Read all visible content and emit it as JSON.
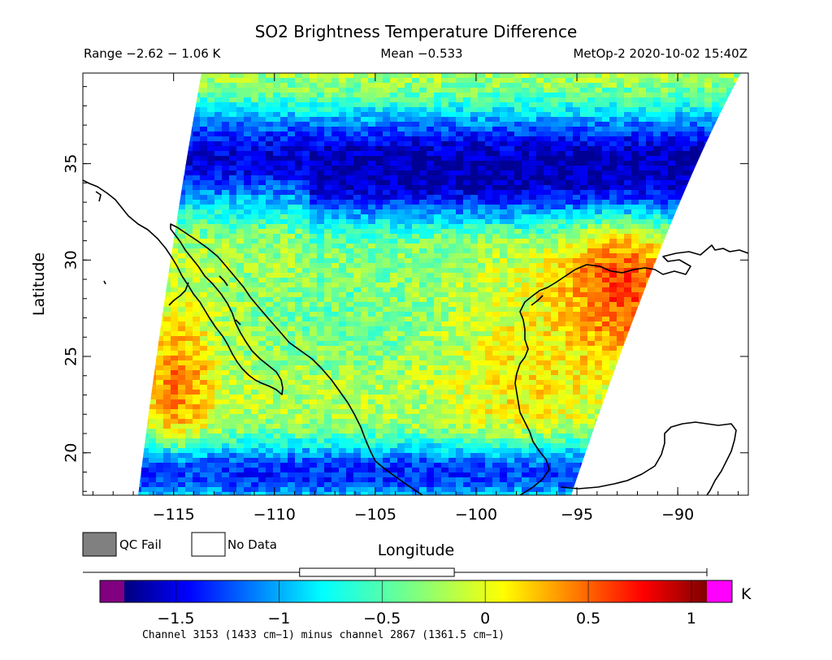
{
  "title": "SO2 Brightness Temperature Difference",
  "range_text": "Range −2.62 − 1.06 K",
  "mean_text": "Mean −0.533",
  "satellite_text": "MetOp-2 2020-10-02 15:40Z",
  "map": {
    "xlabel": "Longitude",
    "ylabel": "Latitude",
    "x_ticks": [
      "−115",
      "−110",
      "−105",
      "−100",
      "−95",
      "−90"
    ],
    "y_ticks": [
      "20",
      "25",
      "30",
      "35"
    ],
    "lon_range": [
      -119.5,
      -86.5
    ],
    "lat_range": [
      17.8,
      39.7
    ]
  },
  "legend": {
    "qc_fail_label": "QC Fail",
    "no_data_label": "No Data",
    "qc_fail_color": "#808080",
    "no_data_color": "#ffffff"
  },
  "colorbar": {
    "unit": "K",
    "ticks": [
      "−1.5",
      "−1",
      "−0.5",
      "0",
      "0.5",
      "1"
    ],
    "tick_values": [
      -1.5,
      -1.0,
      -0.5,
      0.0,
      0.5,
      1.0
    ],
    "range": [
      -1.75,
      1.075
    ],
    "under_color": "#800080",
    "over_color": "#ff00ff",
    "caption": "Channel 3153 (1433 cm−1) minus channel 2867 (1361.5 cm−1)",
    "boxplot": {
      "min": -2.62,
      "q1": -0.9,
      "median": -0.533,
      "q3": -0.15,
      "max": 1.06
    }
  }
}
